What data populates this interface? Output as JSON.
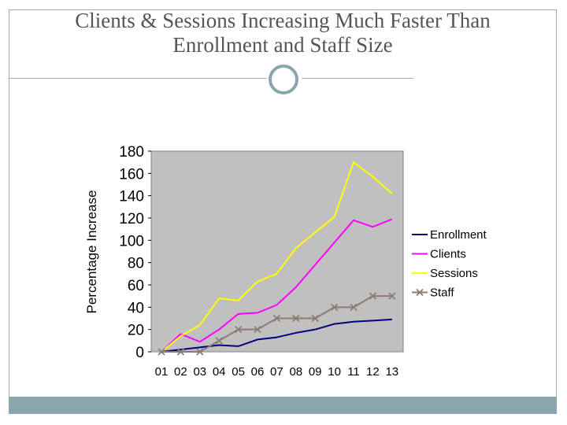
{
  "slide": {
    "title_line1": "Clients & Sessions Increasing Much Faster Than",
    "title_line2": "Enrollment and Staff Size"
  },
  "colors": {
    "plot_background": "#c0c0c0",
    "accent": "#8aa5ac"
  },
  "chart_data": {
    "type": "line",
    "title": "Clients & Sessions Increasing Much Faster Than Enrollment and Staff Size",
    "xlabel": "",
    "ylabel": "Percentage Increase",
    "ylim": [
      0,
      180
    ],
    "yticks": [
      "180",
      "160",
      "140",
      "120",
      "100",
      "80",
      "60",
      "40",
      "20",
      "0"
    ],
    "categories": [
      "01",
      "02",
      "03",
      "04",
      "05",
      "06",
      "07",
      "08",
      "09",
      "10",
      "11",
      "12",
      "13"
    ],
    "legend_position": "right",
    "grid": false,
    "series": [
      {
        "name": "Enrollment",
        "color": "#000080",
        "marker": "none",
        "values": [
          0,
          2,
          4,
          6,
          5,
          11,
          13,
          17,
          20,
          25,
          27,
          28,
          29
        ]
      },
      {
        "name": "Clients",
        "color": "#ff00ff",
        "marker": "none",
        "values": [
          0,
          16,
          9,
          20,
          34,
          35,
          42,
          58,
          78,
          98,
          118,
          112,
          119
        ]
      },
      {
        "name": "Sessions",
        "color": "#ffff00",
        "marker": "none",
        "values": [
          0,
          14,
          24,
          48,
          46,
          63,
          70,
          93,
          107,
          121,
          170,
          157,
          142
        ]
      },
      {
        "name": "Staff",
        "color": "#8c7b72",
        "marker": "x",
        "values": [
          0,
          0,
          0,
          10,
          20,
          20,
          30,
          30,
          30,
          40,
          40,
          50,
          50
        ]
      }
    ]
  }
}
